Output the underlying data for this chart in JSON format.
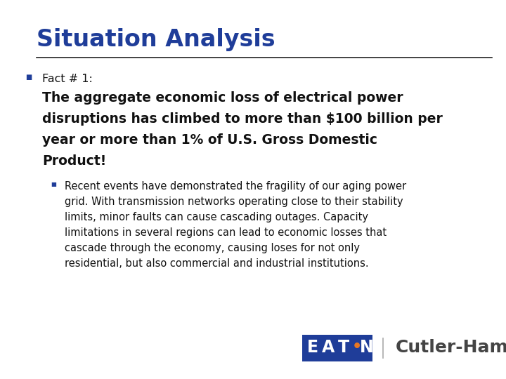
{
  "title": "Situation Analysis",
  "title_color": "#1f3d99",
  "title_fontsize": 24,
  "separator_color": "#222222",
  "bg_color": "#ffffff",
  "bullet1_label": "Fact # 1:",
  "bullet1_label_color": "#111111",
  "bullet1_label_fontsize": 11.5,
  "bullet1_body_lines": [
    "The aggregate economic loss of electrical power",
    "disruptions has climbed to more than $100 billion per",
    "year or more than 1% of U.S. Gross Domestic",
    "Product!"
  ],
  "bullet1_body_color": "#111111",
  "bullet1_body_fontsize": 13.5,
  "bullet2_body_lines": [
    "Recent events have demonstrated the fragility of our aging power",
    "grid. With transmission networks operating close to their stability",
    "limits, minor faults can cause cascading outages. Capacity",
    "limitations in several regions can lead to economic losses that",
    "cascade through the economy, causing loses for not only",
    "residential, but also commercial and industrial institutions."
  ],
  "bullet2_body_color": "#111111",
  "bullet2_body_fontsize": 10.5,
  "bullet1_dot_color": "#1f3d99",
  "bullet2_dot_color": "#1f3d99",
  "eaton_color": "#1f3d99",
  "eaton_dot_color": "#e87722",
  "cutler_text": "Cutler-Hammer",
  "cutler_color": "#444444",
  "logo_fontsize": 18,
  "separator2_color": "#aaaaaa"
}
